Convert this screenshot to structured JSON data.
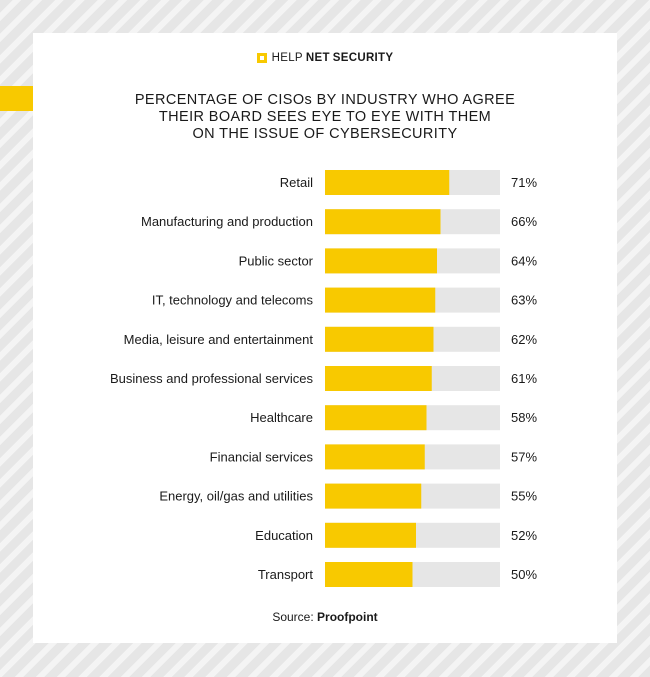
{
  "brand": {
    "part1": "HELP",
    "part2": "NET",
    "part3": "SECURITY"
  },
  "title_lines": [
    "PERCENTAGE OF CISOs BY INDUSTRY WHO AGREE",
    "THEIR BOARD SEES EYE TO EYE WITH THEM",
    "ON THE ISSUE OF CYBERSECURITY"
  ],
  "source": {
    "label": "Source:",
    "name": "Proofpoint"
  },
  "colors": {
    "bar": "#f8c900",
    "track": "#e6e6e6",
    "accent": "#f8c900",
    "text": "#1a1a1a"
  },
  "chart_data": {
    "type": "bar",
    "orientation": "horizontal",
    "title": "PERCENTAGE OF CISOs BY INDUSTRY WHO AGREE THEIR BOARD SEES EYE TO EYE WITH THEM ON THE ISSUE OF CYBERSECURITY",
    "categories": [
      "Retail",
      "Manufacturing and production",
      "Public sector",
      "IT, technology and telecoms",
      "Media, leisure and entertainment",
      "Business and professional services",
      "Healthcare",
      "Financial services",
      "Energy, oil/gas and utilities",
      "Education",
      "Transport"
    ],
    "values": [
      71,
      66,
      64,
      63,
      62,
      61,
      58,
      57,
      55,
      52,
      50
    ],
    "value_labels": [
      "71%",
      "66%",
      "64%",
      "63%",
      "62%",
      "61%",
      "58%",
      "57%",
      "55%",
      "52%",
      "50%"
    ],
    "xlim": [
      0,
      100
    ],
    "grid": false
  }
}
